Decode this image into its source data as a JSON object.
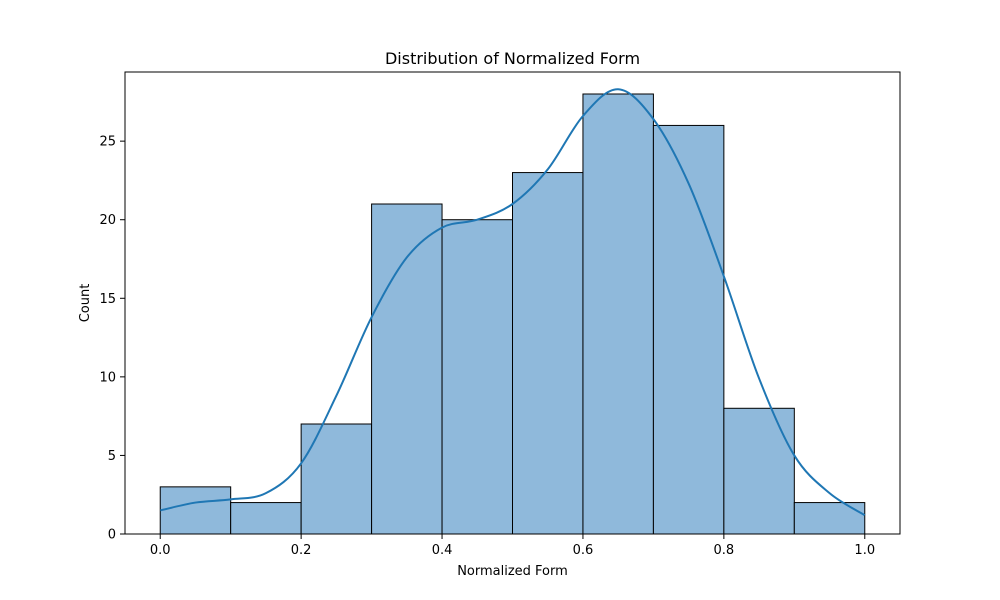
{
  "chart_data": {
    "type": "bar",
    "title": "Distribution of Normalized Form",
    "xlabel": "Normalized Form",
    "ylabel": "Count",
    "xlim": [
      -0.05,
      1.05
    ],
    "ylim": [
      0,
      29.4
    ],
    "bins": [
      {
        "x0": 0.0,
        "x1": 0.1,
        "count": 3
      },
      {
        "x0": 0.1,
        "x1": 0.2,
        "count": 2
      },
      {
        "x0": 0.2,
        "x1": 0.3,
        "count": 7
      },
      {
        "x0": 0.3,
        "x1": 0.4,
        "count": 21
      },
      {
        "x0": 0.4,
        "x1": 0.5,
        "count": 20
      },
      {
        "x0": 0.5,
        "x1": 0.6,
        "count": 23
      },
      {
        "x0": 0.6,
        "x1": 0.7,
        "count": 28
      },
      {
        "x0": 0.7,
        "x1": 0.8,
        "count": 26
      },
      {
        "x0": 0.8,
        "x1": 0.9,
        "count": 8
      },
      {
        "x0": 0.9,
        "x1": 1.0,
        "count": 2
      }
    ],
    "x_ticks": [
      "0.0",
      "0.2",
      "0.4",
      "0.6",
      "0.8",
      "1.0"
    ],
    "y_ticks": [
      "0",
      "5",
      "10",
      "15",
      "20",
      "25"
    ],
    "kde": {
      "x": [
        0.0,
        0.05,
        0.1,
        0.15,
        0.2,
        0.25,
        0.3,
        0.35,
        0.4,
        0.45,
        0.5,
        0.55,
        0.6,
        0.65,
        0.7,
        0.75,
        0.8,
        0.85,
        0.9,
        0.95,
        1.0
      ],
      "y": [
        1.5,
        2.0,
        2.2,
        2.6,
        4.5,
        8.8,
        13.8,
        17.6,
        19.5,
        20.0,
        21.0,
        23.2,
        26.6,
        28.3,
        26.4,
        22.3,
        16.4,
        9.9,
        5.0,
        2.6,
        1.2
      ]
    },
    "grid": false,
    "bar_color": "#8fb9db",
    "bar_edge_color": "#000000",
    "kde_color": "#1f77b4"
  }
}
